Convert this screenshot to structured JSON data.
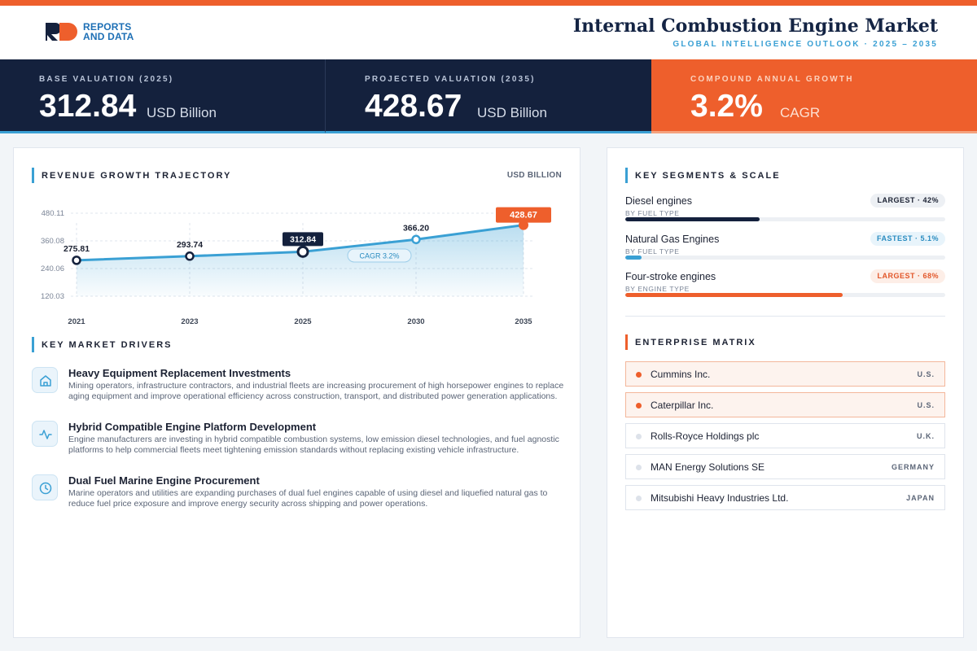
{
  "brand": {
    "line1": "REPORTS",
    "line2": "AND DATA",
    "logo_letters": "RD"
  },
  "header": {
    "title": "Internal Combustion Engine Market",
    "subtitle": "GLOBAL INTELLIGENCE OUTLOOK  ·  2025 – 2035"
  },
  "kpis": [
    {
      "label": "BASE VALUATION (2025)",
      "value": "312.84",
      "unit": "USD Billion"
    },
    {
      "label": "PROJECTED VALUATION (2035)",
      "value": "428.67",
      "unit": "USD Billion"
    },
    {
      "label": "COMPOUND ANNUAL GROWTH",
      "value": "3.2%",
      "unit": "CAGR"
    }
  ],
  "chart_section": {
    "title": "REVENUE GROWTH TRAJECTORY",
    "unit": "USD BILLION"
  },
  "chart_data": {
    "type": "area",
    "categories": [
      "2021",
      "2023",
      "2025",
      "2030",
      "2035"
    ],
    "values": [
      275.81,
      293.74,
      312.84,
      366.2,
      428.67
    ],
    "value_labels": [
      "275.81",
      "293.74",
      "312.84",
      "366.20",
      "428.67"
    ],
    "yticks": [
      120.03,
      240.06,
      360.08,
      480.11
    ],
    "ytick_labels": [
      "120.03",
      "240.06",
      "360.08",
      "480.11"
    ],
    "ylim": [
      120.03,
      480.11
    ],
    "annotation": "CAGR 3.2%",
    "grid": true,
    "colors": {
      "line": "#3aa0d4",
      "highlight": "#14213d",
      "end": "#ee5f2c"
    }
  },
  "drivers_section": {
    "title": "KEY MARKET DRIVERS"
  },
  "drivers": [
    {
      "icon": "home-icon",
      "title": "Heavy Equipment Replacement Investments",
      "desc": "Mining operators, infrastructure contractors, and industrial fleets are increasing procurement of high horsepower engines to replace aging equipment and improve operational efficiency across construction, transport, and distributed power generation applications."
    },
    {
      "icon": "activity-icon",
      "title": "Hybrid Compatible Engine Platform Development",
      "desc": "Engine manufacturers are investing in hybrid compatible combustion systems, low emission diesel technologies, and fuel agnostic platforms to help commercial fleets meet tightening emission standards without replacing existing vehicle infrastructure."
    },
    {
      "icon": "clock-icon",
      "title": "Dual Fuel Marine Engine Procurement",
      "desc": "Marine operators and utilities are expanding purchases of dual fuel engines capable of using diesel and liquefied natural gas to reduce fuel price exposure and improve energy security across shipping and power operations."
    }
  ],
  "segments_section": {
    "title": "KEY SEGMENTS & SCALE"
  },
  "segments": [
    {
      "name": "Diesel engines",
      "type": "BY FUEL TYPE",
      "badge": "LARGEST · 42%",
      "share": 0.42,
      "color": "#14213d",
      "badge_bg": "#edf0f4",
      "badge_fg": "#1c2233"
    },
    {
      "name": "Natural Gas Engines",
      "type": "BY FUEL TYPE",
      "badge": "FASTEST · 5.1%",
      "share": 0.051,
      "color": "#3aa0d4",
      "badge_bg": "#e8f4fb",
      "badge_fg": "#2a8cc0"
    },
    {
      "name": "Four-stroke engines",
      "type": "BY ENGINE TYPE",
      "badge": "LARGEST · 68%",
      "share": 0.68,
      "color": "#ee5f2c",
      "badge_bg": "#fdeee7",
      "badge_fg": "#e2572a"
    }
  ],
  "matrix_section": {
    "title": "ENTERPRISE MATRIX"
  },
  "companies": [
    {
      "name": "Cummins Inc.",
      "country": "U.S.",
      "highlight": true
    },
    {
      "name": "Caterpillar Inc.",
      "country": "U.S.",
      "highlight": true
    },
    {
      "name": "Rolls-Royce Holdings plc",
      "country": "U.K.",
      "highlight": false
    },
    {
      "name": "MAN Energy Solutions SE",
      "country": "GERMANY",
      "highlight": false
    },
    {
      "name": "Mitsubishi Heavy Industries Ltd.",
      "country": "JAPAN",
      "highlight": false
    }
  ]
}
